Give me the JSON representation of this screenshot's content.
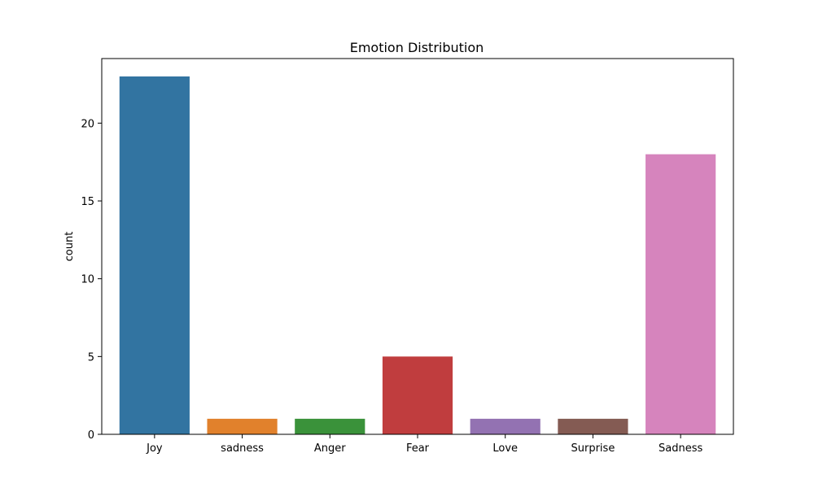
{
  "chart_data": {
    "type": "bar",
    "title": "Emotion Distribution",
    "xlabel": "",
    "ylabel": "count",
    "categories": [
      "Joy",
      "sadness",
      "Anger",
      "Fear",
      "Love",
      "Surprise",
      "Sadness"
    ],
    "values": [
      23,
      1,
      1,
      5,
      1,
      1,
      18
    ],
    "colors": [
      "#3274a1",
      "#e1812c",
      "#3a923a",
      "#c03d3e",
      "#9372b2",
      "#845b53",
      "#d684bd"
    ],
    "ylim": [
      0,
      24.15
    ],
    "yticks": [
      0,
      5,
      10,
      15,
      20
    ],
    "grid": false,
    "legend": "none"
  }
}
